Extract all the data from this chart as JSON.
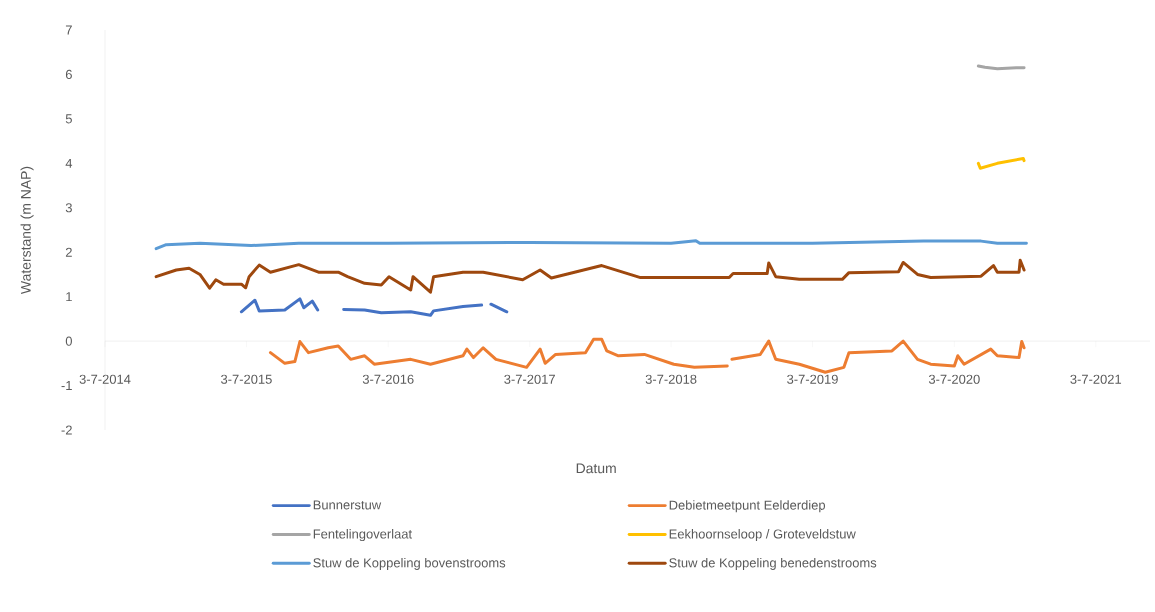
{
  "chart_data": {
    "type": "line",
    "xlabel": "Datum",
    "ylabel": "Waterstand (m NAP)",
    "xlim": [
      "2014-07-03",
      "2021-11-20"
    ],
    "ylim": [
      -2,
      7
    ],
    "xticks": [
      {
        "value": "2014-07-03",
        "label": "3-7-2014"
      },
      {
        "value": "2015-07-03",
        "label": "3-7-2015"
      },
      {
        "value": "2016-07-03",
        "label": "3-7-2016"
      },
      {
        "value": "2017-07-03",
        "label": "3-7-2017"
      },
      {
        "value": "2018-07-03",
        "label": "3-7-2018"
      },
      {
        "value": "2019-07-03",
        "label": "3-7-2019"
      },
      {
        "value": "2020-07-03",
        "label": "3-7-2020"
      },
      {
        "value": "2021-07-03",
        "label": "3-7-2021"
      }
    ],
    "yticks": [
      -2,
      -1,
      0,
      1,
      2,
      3,
      4,
      5,
      6,
      7
    ],
    "legend": "bottom",
    "marker": "none",
    "line_style": "solid",
    "series": [
      {
        "name": "Bunnerstuw",
        "color": "#4472c4",
        "x": [
          "2015-06-20",
          "2015-07-25",
          "2015-08-05",
          "2015-10-10",
          "2015-11-18",
          "2015-11-28",
          "2015-12-20",
          "2016-01-03",
          "2016-02-05",
          "2016-03-10",
          "2016-05-03",
          "2016-06-15",
          "2016-08-30",
          "2016-10-20",
          "2016-10-28",
          "2017-01-12",
          "2017-03-01",
          "2017-03-12",
          "2017-03-25",
          "2017-05-05"
        ],
        "values": [
          0.66,
          0.92,
          0.68,
          0.7,
          0.95,
          0.75,
          0.9,
          0.7,
          null,
          0.71,
          0.7,
          0.64,
          0.66,
          0.58,
          0.68,
          0.78,
          0.81,
          null,
          0.83,
          0.66
        ]
      },
      {
        "name": "Debietmeetpunt Eelderdiep",
        "color": "#ed7d31",
        "x": [
          "2015-09-03",
          "2015-10-10",
          "2015-11-05",
          "2015-11-18",
          "2015-12-10",
          "2016-01-30",
          "2016-02-25",
          "2016-03-28",
          "2016-05-03",
          "2016-05-28",
          "2016-08-30",
          "2016-10-20",
          "2017-01-12",
          "2017-01-22",
          "2017-02-08",
          "2017-03-05",
          "2017-04-07",
          "2017-06-25",
          "2017-07-30",
          "2017-08-12",
          "2017-09-08",
          "2017-11-24",
          "2017-12-15",
          "2018-01-05",
          "2018-01-18",
          "2018-02-17",
          "2018-04-25",
          "2018-07-10",
          "2018-09-01",
          "2018-11-25",
          "2018-12-01",
          "2018-12-07",
          "2019-02-18",
          "2019-03-12",
          "2019-03-30",
          "2019-05-30",
          "2019-08-05",
          "2019-09-22",
          "2019-10-05",
          "2020-01-24",
          "2020-02-22",
          "2020-03-30",
          "2020-05-03",
          "2020-07-03",
          "2020-07-12",
          "2020-07-28",
          "2020-10-05",
          "2020-10-22",
          "2020-12-17",
          "2020-12-24",
          "2020-12-30"
        ],
        "values": [
          -0.26,
          -0.5,
          -0.46,
          -0.01,
          -0.26,
          -0.15,
          -0.11,
          -0.41,
          -0.33,
          -0.52,
          -0.41,
          -0.52,
          -0.33,
          -0.18,
          -0.37,
          -0.15,
          -0.41,
          -0.59,
          -0.18,
          -0.5,
          -0.3,
          -0.26,
          0.04,
          0.04,
          -0.22,
          -0.33,
          -0.3,
          -0.52,
          -0.59,
          -0.56,
          null,
          -0.41,
          -0.3,
          0.0,
          -0.41,
          -0.52,
          -0.7,
          -0.59,
          -0.26,
          -0.22,
          0.0,
          -0.41,
          -0.52,
          -0.56,
          -0.33,
          -0.52,
          -0.18,
          -0.33,
          -0.37,
          -0.01,
          -0.15
        ]
      },
      {
        "name": "Fentelingoverlaat",
        "color": "#a5a5a5",
        "x": [
          "2020-09-03",
          "2020-09-20",
          "2020-10-22",
          "2020-12-10",
          "2020-12-30"
        ],
        "values": [
          6.19,
          6.16,
          6.13,
          6.15,
          6.15
        ]
      },
      {
        "name": "Eekhoornseloop / Groteveldstuw",
        "color": "#ffc000",
        "x": [
          "2020-09-03",
          "2020-09-08",
          "2020-10-22",
          "2020-12-28",
          "2020-12-30"
        ],
        "values": [
          4.0,
          3.89,
          4.0,
          4.11,
          4.06
        ]
      },
      {
        "name": "Stuw de Koppeling bovenstrooms",
        "color": "#5b9bd5",
        "x": [
          "2014-11-12",
          "2014-12-08",
          "2015-03-05",
          "2015-07-15",
          "2015-11-15",
          "2016-07-03",
          "2017-07-03",
          "2018-07-03",
          "2018-09-05",
          "2018-09-15",
          "2019-07-03",
          "2020-04-15",
          "2020-09-10",
          "2020-10-22",
          "2021-01-05"
        ],
        "values": [
          2.08,
          2.17,
          2.2,
          2.15,
          2.2,
          2.2,
          2.22,
          2.2,
          2.26,
          2.2,
          2.2,
          2.25,
          2.25,
          2.2,
          2.2
        ]
      },
      {
        "name": "Stuw de Koppeling benedenstrooms",
        "color": "#9e480e",
        "x": [
          "2014-11-12",
          "2015-01-03",
          "2015-02-05",
          "2015-03-05",
          "2015-03-30",
          "2015-04-15",
          "2015-05-05",
          "2015-06-20",
          "2015-07-01",
          "2015-07-10",
          "2015-08-05",
          "2015-09-03",
          "2015-11-15",
          "2016-01-05",
          "2016-02-25",
          "2016-03-20",
          "2016-05-03",
          "2016-06-15",
          "2016-07-05",
          "2016-08-30",
          "2016-09-05",
          "2016-10-20",
          "2016-10-28",
          "2017-01-12",
          "2017-03-05",
          "2017-06-15",
          "2017-07-30",
          "2017-08-28",
          "2018-01-05",
          "2018-04-15",
          "2018-11-30",
          "2018-12-10",
          "2019-03-08",
          "2019-03-12",
          "2019-03-30",
          "2019-05-30",
          "2019-09-18",
          "2019-10-05",
          "2020-02-10",
          "2020-02-22",
          "2020-03-30",
          "2020-05-03",
          "2020-09-10",
          "2020-10-12",
          "2020-10-22",
          "2020-12-17",
          "2020-12-20",
          "2020-12-30"
        ],
        "values": [
          1.45,
          1.6,
          1.64,
          1.5,
          1.19,
          1.38,
          1.28,
          1.28,
          1.2,
          1.45,
          1.71,
          1.55,
          1.72,
          1.55,
          1.55,
          1.45,
          1.3,
          1.26,
          1.45,
          1.15,
          1.45,
          1.1,
          1.45,
          1.55,
          1.55,
          1.38,
          1.6,
          1.42,
          1.7,
          1.43,
          1.43,
          1.52,
          1.52,
          1.76,
          1.45,
          1.39,
          1.39,
          1.54,
          1.56,
          1.77,
          1.5,
          1.43,
          1.46,
          1.7,
          1.55,
          1.55,
          1.82,
          1.6
        ]
      }
    ]
  }
}
